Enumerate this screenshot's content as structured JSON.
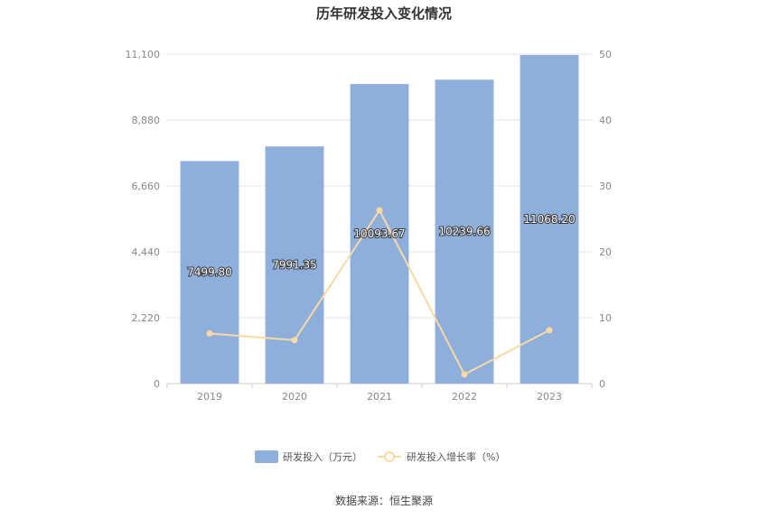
{
  "chart_data": {
    "type": "bar",
    "title": "历年研发投入变化情况",
    "categories": [
      "2019",
      "2020",
      "2021",
      "2022",
      "2023"
    ],
    "series": [
      {
        "name": "研发投入（万元）",
        "type": "bar",
        "axis": "left",
        "values": [
          7499.8,
          7991.35,
          10093.67,
          10239.66,
          11068.2
        ],
        "labels": [
          "7499.80",
          "7991.35",
          "10093.67",
          "10239.66",
          "11068.20"
        ],
        "color": "#8eaedb"
      },
      {
        "name": "研发投入增长率（%）",
        "type": "line",
        "axis": "right",
        "values": [
          7.6,
          6.6,
          26.3,
          1.4,
          8.1
        ],
        "color": "#f9d9a4"
      }
    ],
    "y_left": {
      "ylim": [
        0,
        11100
      ],
      "ticks": [
        "0",
        "2,220",
        "4,440",
        "6,660",
        "8,880",
        "11,100"
      ]
    },
    "y_right": {
      "ylim": [
        0,
        50
      ],
      "ticks": [
        "0",
        "10",
        "20",
        "30",
        "40",
        "50"
      ]
    },
    "grid": true,
    "legend": "bottom",
    "source": "数据来源：恒生聚源"
  }
}
